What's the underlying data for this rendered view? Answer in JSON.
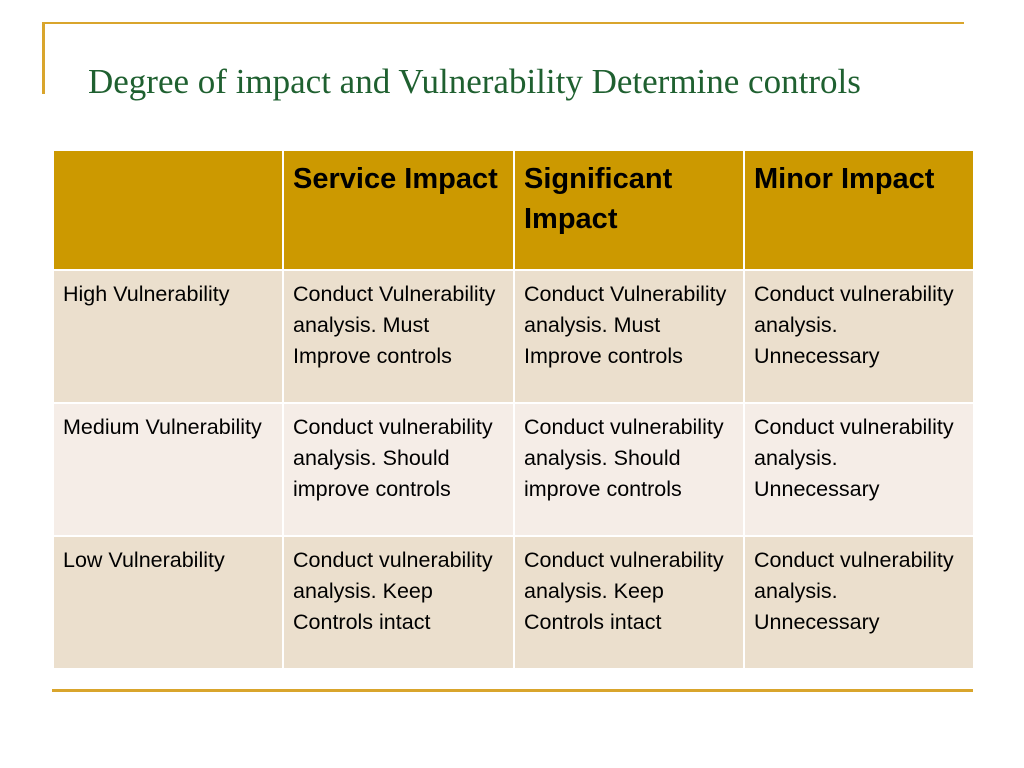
{
  "slide": {
    "title": "Degree of impact and Vulnerability Determine controls"
  },
  "table": {
    "header": [
      "",
      "Service Impact",
      "Significant Impact",
      "Minor Impact"
    ],
    "rows": [
      [
        "High Vulnerability",
        "Conduct Vulnerability analysis. Must Improve controls",
        "Conduct Vulnerability analysis. Must Improve controls",
        "Conduct vulnerability analysis. Unnecessary"
      ],
      [
        "Medium Vulnerability",
        "Conduct vulnerability analysis. Should improve controls",
        "Conduct vulnerability analysis. Should improve controls",
        "Conduct vulnerability analysis. Unnecessary"
      ],
      [
        "Low Vulnerability",
        "Conduct vulnerability analysis. Keep Controls intact",
        "Conduct vulnerability analysis. Keep Controls intact",
        "Conduct vulnerability analysis. Unnecessary"
      ]
    ]
  },
  "colors": {
    "accent_gold": "#d9a52c",
    "header_fill": "#cc9900",
    "title_green": "#1f6030",
    "row_odd": "#ebdfcd",
    "row_even": "#f5ede7"
  }
}
